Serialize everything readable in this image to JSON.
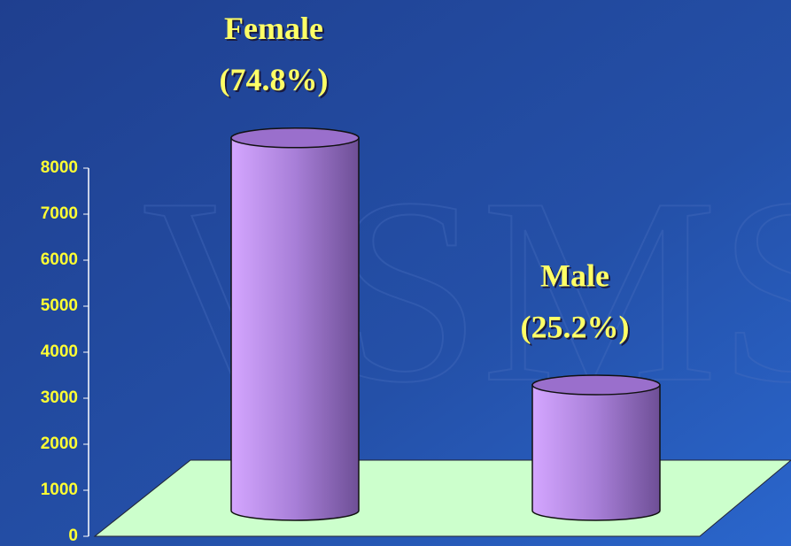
{
  "chart_data": {
    "type": "cylinder",
    "categories": [
      "Female",
      "Male"
    ],
    "values": [
      8100,
      2730
    ],
    "percent_labels": [
      "(74.8%)",
      "(25.2%)"
    ],
    "color": "#b07fe0",
    "ylim": [
      0,
      8000
    ],
    "yticks": [
      0,
      1000,
      2000,
      3000,
      4000,
      5000,
      6000,
      7000,
      8000
    ]
  }
}
